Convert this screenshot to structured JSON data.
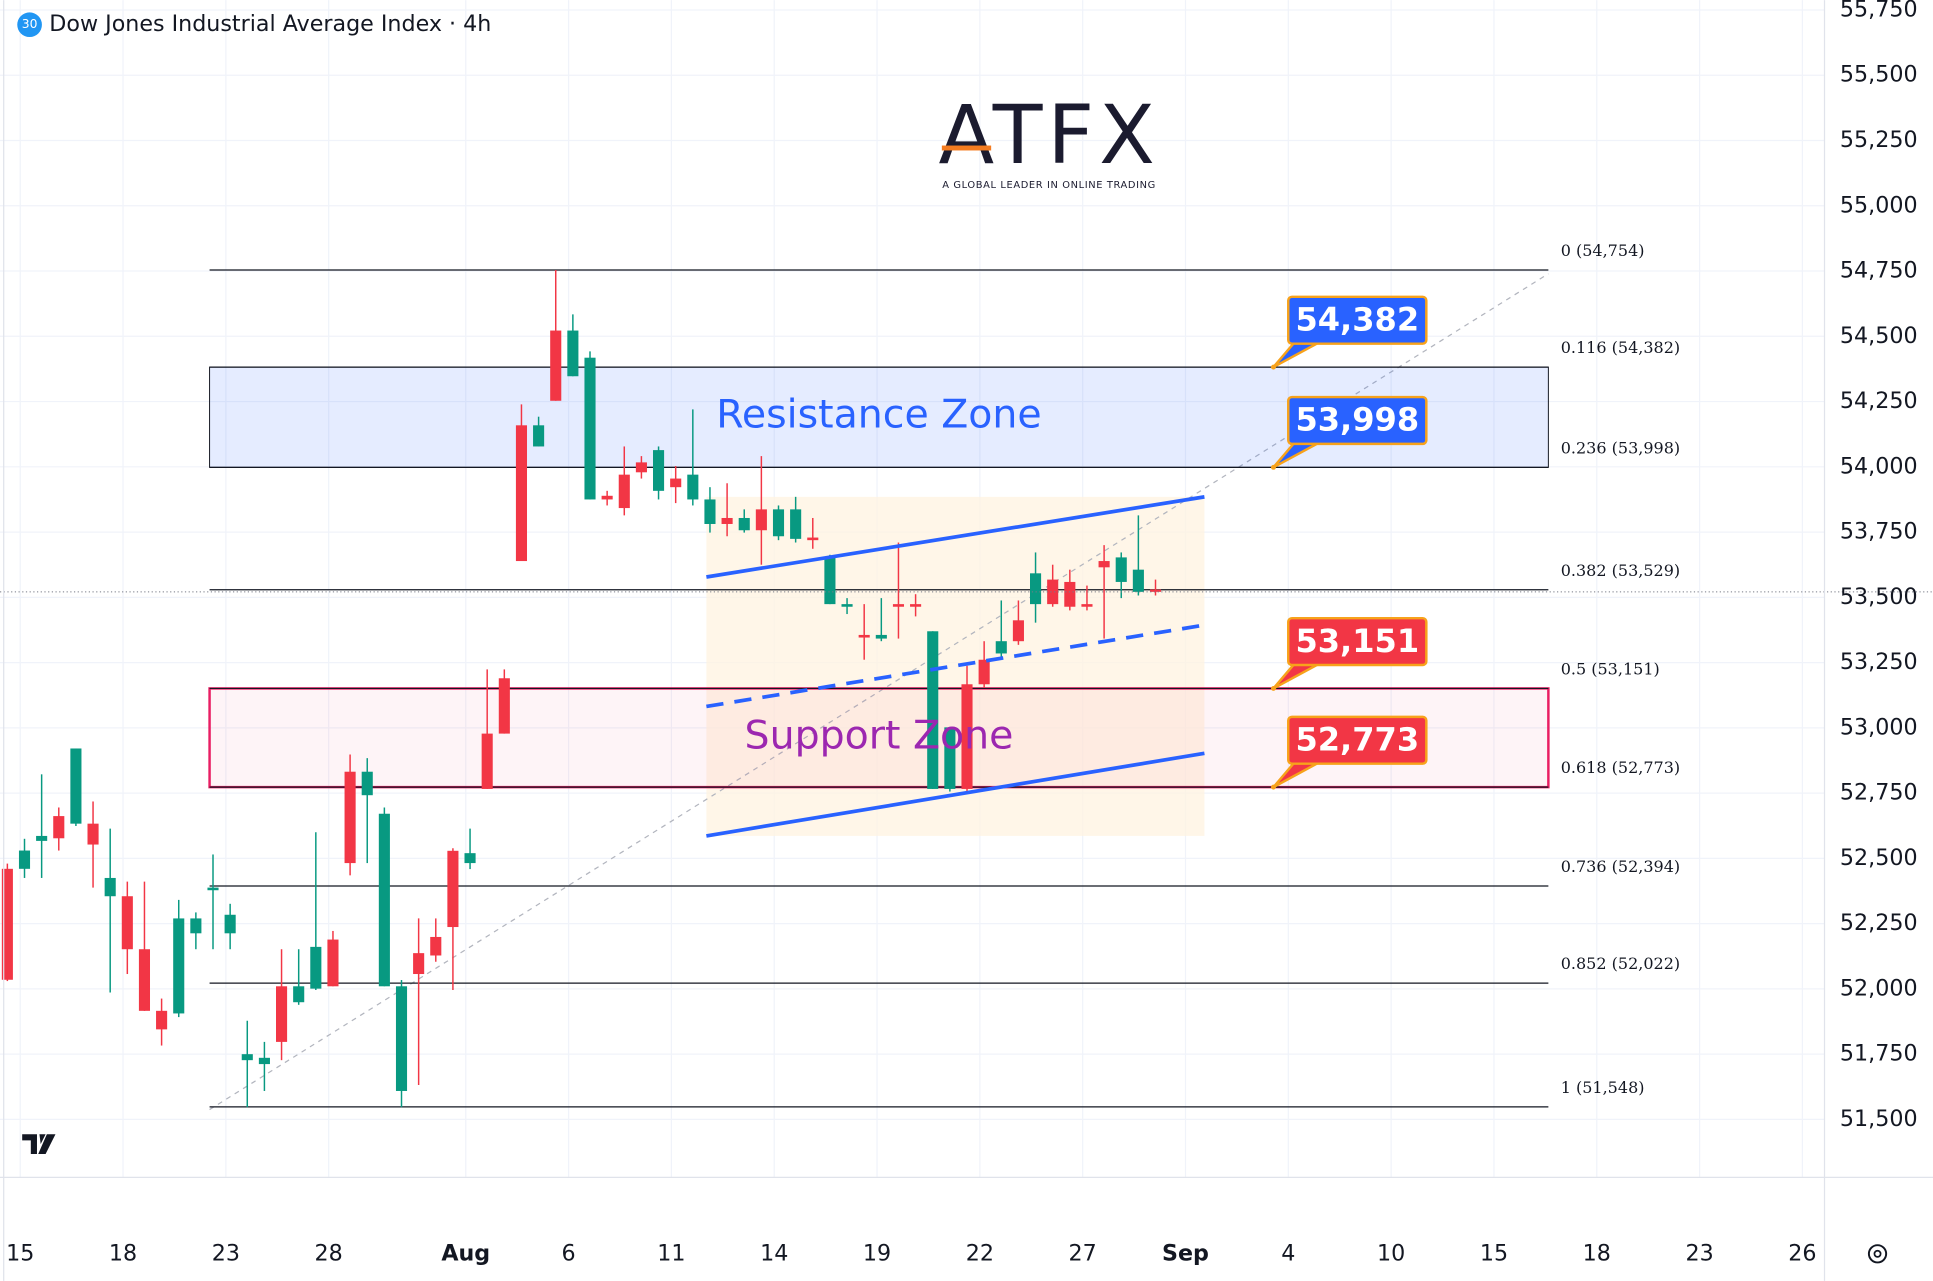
{
  "chart_data": {
    "type": "candlestick",
    "title": "Dow Jones Industrial Average Index · 4h",
    "badge": "30",
    "logo": {
      "name": "ATFX",
      "tagline": "A GLOBAL LEADER IN ONLINE TRADING"
    },
    "up_color": "#089981",
    "down_color": "#f23645",
    "grid": true,
    "x": [
      0,
      1,
      2,
      3,
      4,
      5,
      6,
      7,
      8,
      9,
      10,
      11,
      12,
      13,
      14,
      15,
      16,
      17,
      18,
      19,
      20,
      21,
      22,
      23,
      24,
      25,
      26,
      27,
      28,
      29,
      30,
      31,
      32,
      33,
      34,
      35,
      36,
      37,
      38,
      39,
      40,
      41,
      42,
      43,
      44,
      45,
      46,
      47,
      48,
      49,
      50,
      51,
      52,
      53,
      54,
      55,
      56,
      57,
      58,
      59,
      60,
      61,
      62,
      63,
      64,
      65,
      66,
      67
    ],
    "open": [
      52460,
      52460,
      52567,
      52662,
      52633,
      52633,
      52355,
      52355,
      52152,
      51916,
      51906,
      52213,
      52378,
      52213,
      51727,
      51712,
      52010,
      51949,
      52001,
      52189,
      52832,
      52742,
      52010,
      51609,
      52137,
      52199,
      52529,
      52482,
      52978,
      53190,
      54159,
      54078,
      54522,
      54347,
      53875,
      53889,
      53970,
      54017,
      53908,
      53955,
      53875,
      53781,
      53804,
      53757,
      53837,
      53734,
      53724,
      53729,
      53474,
      53464,
      53356,
      53342,
      53474,
      53474,
      52766,
      52766,
      53167,
      53261,
      53285,
      53412,
      53474,
      53568,
      53559,
      53474,
      53639,
      53559,
      53521,
      53530
    ],
    "high": [
      52480,
      52575,
      52822,
      52695,
      52921,
      52718,
      52614,
      52411,
      52411,
      51963,
      52341,
      52293,
      52515,
      52326,
      51878,
      51797,
      52152,
      52152,
      52600,
      52222,
      52898,
      52884,
      52695,
      52034,
      52270,
      52270,
      52539,
      52614,
      53224,
      53224,
      54239,
      54192,
      54754,
      54584,
      54442,
      53908,
      54078,
      54041,
      54078,
      54003,
      54220,
      53922,
      53937,
      53837,
      54041,
      53852,
      53885,
      53804,
      53663,
      53497,
      53474,
      53497,
      53710,
      53512,
      53370,
      53002,
      53238,
      53332,
      53488,
      53488,
      53672,
      53625,
      53606,
      53545,
      53700,
      53672,
      53814,
      53568
    ],
    "low": [
      52030,
      52425,
      52425,
      52530,
      52624,
      52388,
      51986,
      52057,
      51916,
      51783,
      51892,
      52152,
      52152,
      52152,
      51547,
      51609,
      51727,
      51939,
      51996,
      52010,
      52435,
      52482,
      52010,
      51547,
      51632,
      52104,
      51996,
      52459,
      52766,
      52978,
      53639,
      54078,
      54253,
      54347,
      53875,
      53852,
      53814,
      53955,
      53875,
      53861,
      53852,
      53748,
      53734,
      53748,
      53625,
      53719,
      53710,
      53686,
      53474,
      53436,
      53261,
      53332,
      53342,
      53427,
      52766,
      52756,
      52756,
      53153,
      53261,
      53318,
      53403,
      53464,
      53450,
      53450,
      53342,
      53497,
      53507,
      53507
    ],
    "close": [
      52035,
      52530,
      52586,
      52577,
      52921,
      52553,
      52425,
      52152,
      51916,
      51845,
      52270,
      52270,
      52388,
      52284,
      51750,
      51736,
      51797,
      52010,
      52161,
      52010,
      52482,
      52832,
      52671,
      52010,
      52057,
      52128,
      52237,
      52520,
      52766,
      52978,
      53639,
      54159,
      54253,
      54522,
      54418,
      53875,
      53842,
      53979,
      54064,
      53922,
      53970,
      53875,
      53781,
      53804,
      53757,
      53837,
      53837,
      53719,
      53653,
      53474,
      53346,
      53356,
      53464,
      53464,
      53370,
      53002,
      52766,
      53167,
      53332,
      53332,
      53592,
      53474,
      53464,
      53464,
      53615,
      53653,
      53606,
      53521
    ],
    "xlim": [
      -0.43,
      106.04
    ],
    "xticks": [
      {
        "value": 0.75,
        "label": "15"
      },
      {
        "value": 6.75,
        "label": "18"
      },
      {
        "value": 12.75,
        "label": "23"
      },
      {
        "value": 18.75,
        "label": "28"
      },
      {
        "value": 26.75,
        "label": "Aug"
      },
      {
        "value": 32.75,
        "label": "6"
      },
      {
        "value": 38.75,
        "label": "11"
      },
      {
        "value": 44.75,
        "label": "14"
      },
      {
        "value": 50.75,
        "label": "19"
      },
      {
        "value": 56.75,
        "label": "22"
      },
      {
        "value": 62.75,
        "label": "27"
      },
      {
        "value": 68.75,
        "label": "Sep"
      },
      {
        "value": 74.75,
        "label": "4"
      },
      {
        "value": 80.75,
        "label": "10"
      },
      {
        "value": 86.75,
        "label": "15"
      },
      {
        "value": 92.75,
        "label": "18"
      },
      {
        "value": 98.75,
        "label": "23"
      },
      {
        "value": 104.75,
        "label": "26"
      }
    ],
    "ylim": [
      51278,
      55788
    ],
    "yticks": [
      {
        "value": 51500,
        "label": "51,500"
      },
      {
        "value": 51750,
        "label": "51,750"
      },
      {
        "value": 52000,
        "label": "52,000"
      },
      {
        "value": 52250,
        "label": "52,250"
      },
      {
        "value": 52500,
        "label": "52,500"
      },
      {
        "value": 52750,
        "label": "52,750"
      },
      {
        "value": 53000,
        "label": "53,000"
      },
      {
        "value": 53250,
        "label": "53,250"
      },
      {
        "value": 53500,
        "label": "53,500"
      },
      {
        "value": 53750,
        "label": "53,750"
      },
      {
        "value": 54000,
        "label": "54,000"
      },
      {
        "value": 54250,
        "label": "54,250"
      },
      {
        "value": 54500,
        "label": "54,500"
      },
      {
        "value": 54750,
        "label": "54,750"
      },
      {
        "value": 55000,
        "label": "55,000"
      },
      {
        "value": 55250,
        "label": "55,250"
      },
      {
        "value": 55500,
        "label": "55,500"
      },
      {
        "value": 55750,
        "label": "55,750"
      }
    ],
    "fib_levels": [
      {
        "value": 54754,
        "label": "0 (54,754)"
      },
      {
        "value": 54382,
        "label": "0.116 (54,382)"
      },
      {
        "value": 53998,
        "label": "0.236 (53,998)"
      },
      {
        "value": 53529,
        "label": "0.382 (53,529)"
      },
      {
        "value": 53151,
        "label": "0.5 (53,151)"
      },
      {
        "value": 52773,
        "label": "0.618 (52,773)"
      },
      {
        "value": 52394,
        "label": "0.736 (52,394)"
      },
      {
        "value": 52022,
        "label": "0.852 (52,022)"
      },
      {
        "value": 51548,
        "label": "1 (51,548)"
      }
    ],
    "zones": [
      {
        "name": "Resistance Zone",
        "low": 53998,
        "high": 54382,
        "color": "#2962ff"
      },
      {
        "name": "Support Zone",
        "low": 52773,
        "high": 53151,
        "color": "#e91e63"
      }
    ],
    "callouts": [
      {
        "value": 54382,
        "label": "54,382",
        "color": "#2962ff"
      },
      {
        "value": 53998,
        "label": "53,998",
        "color": "#2962ff"
      },
      {
        "value": 53151,
        "label": "53,151",
        "color": "#f23645"
      },
      {
        "value": 52773,
        "label": "52,773",
        "color": "#f23645"
      }
    ]
  }
}
